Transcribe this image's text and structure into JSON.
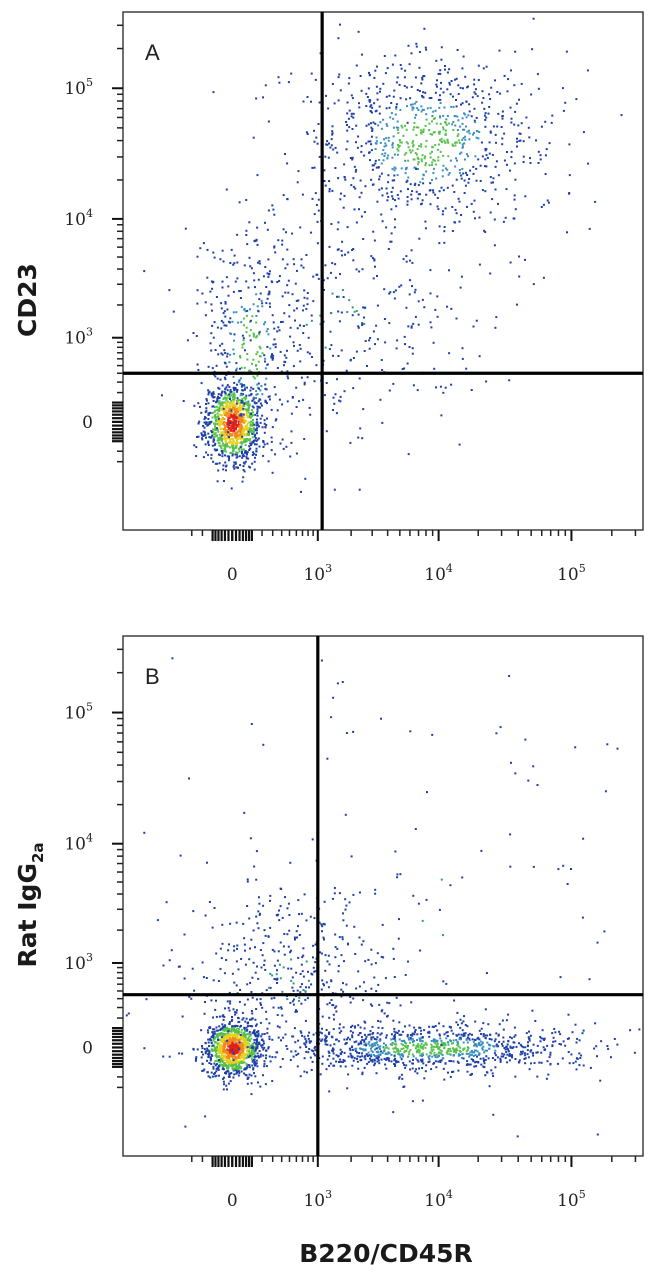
{
  "chart_data": [
    {
      "panel": "A",
      "type": "scatter",
      "ylabel": "CD23",
      "xlabel": "",
      "x_scale": "biexponential",
      "y_scale": "biexponential",
      "xlim": [
        -500,
        200000
      ],
      "ylim": [
        -500,
        220000
      ],
      "x_ticks": [
        {
          "value": 0,
          "base": "0",
          "exp": ""
        },
        {
          "value": 1000,
          "base": "10",
          "exp": "3"
        },
        {
          "value": 10000,
          "base": "10",
          "exp": "4"
        },
        {
          "value": 100000,
          "base": "10",
          "exp": "5"
        }
      ],
      "y_ticks": [
        {
          "value": 0,
          "base": "0",
          "exp": ""
        },
        {
          "value": 1000,
          "base": "10",
          "exp": "3"
        },
        {
          "value": 10000,
          "base": "10",
          "exp": "4"
        },
        {
          "value": 100000,
          "base": "10",
          "exp": "5"
        }
      ],
      "quadrant_gate": {
        "x": 1100,
        "y": 400
      },
      "populations": [
        {
          "x_center": 0,
          "y_center": 0,
          "x_spread": 80,
          "y_spread": 120,
          "share": 0.4,
          "peak_color": "red"
        },
        {
          "x_center": 100,
          "y_center": 800,
          "x_spread": 150,
          "y_spread": 600,
          "share": 0.12,
          "peak_color": "green"
        },
        {
          "x_center": 8000,
          "y_center": 40000,
          "x_spread": 0.45,
          "y_spread": 0.35,
          "share": 0.33,
          "peak_color": "green"
        },
        {
          "x_center": 1500,
          "y_center": 1500,
          "x_spread": 0.55,
          "y_spread": 0.5,
          "share": 0.15,
          "peak_color": "blue"
        }
      ]
    },
    {
      "panel": "B",
      "type": "scatter",
      "ylabel": "Rat IgG",
      "ylabel_sub": "2a",
      "xlabel": "B220/CD45R",
      "x_scale": "biexponential",
      "y_scale": "biexponential",
      "xlim": [
        -500,
        200000
      ],
      "ylim": [
        -500,
        220000
      ],
      "x_ticks": [
        {
          "value": 0,
          "base": "0",
          "exp": ""
        },
        {
          "value": 1000,
          "base": "10",
          "exp": "3"
        },
        {
          "value": 10000,
          "base": "10",
          "exp": "4"
        },
        {
          "value": 100000,
          "base": "10",
          "exp": "5"
        }
      ],
      "y_ticks": [
        {
          "value": 0,
          "base": "0",
          "exp": ""
        },
        {
          "value": 1000,
          "base": "10",
          "exp": "3"
        },
        {
          "value": 10000,
          "base": "10",
          "exp": "4"
        },
        {
          "value": 100000,
          "base": "10",
          "exp": "5"
        }
      ],
      "quadrant_gate": {
        "x": 1000,
        "y": 450
      },
      "populations": [
        {
          "x_center": 0,
          "y_center": 0,
          "x_spread": 80,
          "y_spread": 80,
          "share": 0.4,
          "peak_color": "red"
        },
        {
          "x_center": 8000,
          "y_center": 0,
          "x_spread": 0.6,
          "y_spread": 70,
          "share": 0.38,
          "peak_color": "green"
        },
        {
          "x_center": 500,
          "y_center": 700,
          "x_spread": 0.4,
          "y_spread": 0.35,
          "share": 0.17,
          "peak_color": "blue"
        },
        {
          "x_center": 10000,
          "y_center": 5000,
          "x_spread": 1.0,
          "y_spread": 1.2,
          "share": 0.05,
          "peak_color": "blue"
        }
      ]
    }
  ]
}
